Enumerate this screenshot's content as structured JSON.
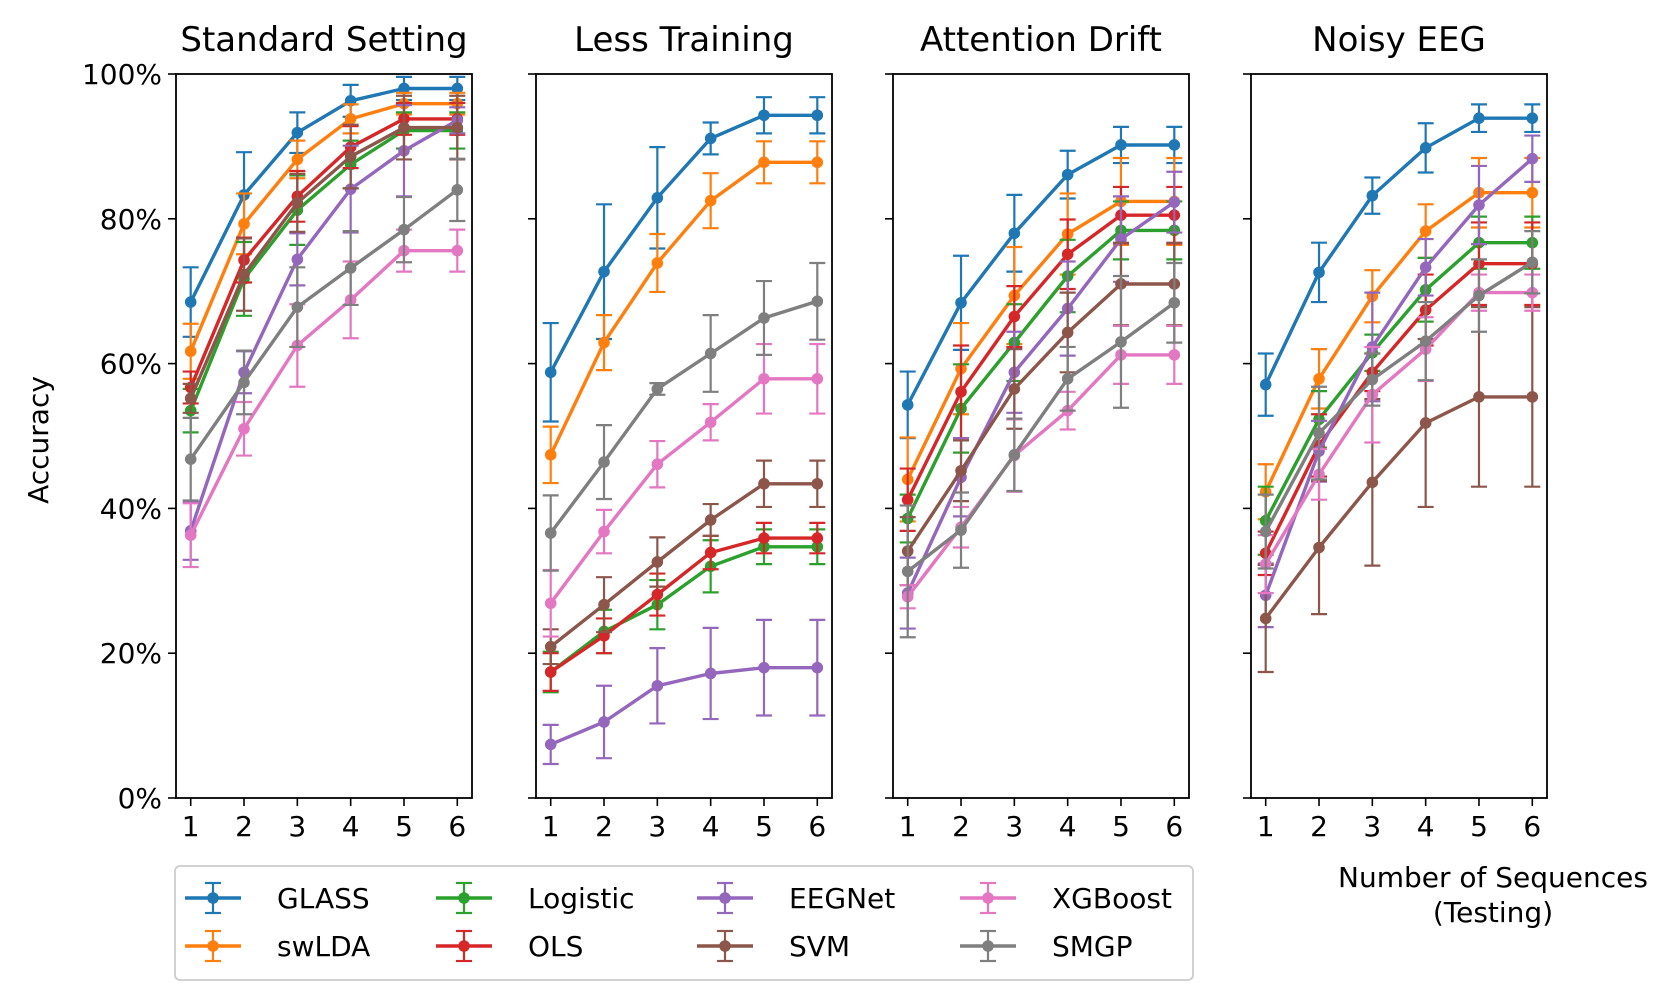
{
  "chart_data": {
    "type": "line",
    "shared_ylabel": "Accuracy",
    "ylim": [
      0,
      100
    ],
    "y_ticks": [
      "0%",
      "20%",
      "40%",
      "60%",
      "80%",
      "100%"
    ],
    "x": [
      1,
      2,
      3,
      4,
      5,
      6
    ],
    "xlabel_line1": "Number of Sequences",
    "xlabel_line2": "(Testing)",
    "series_meta": [
      {
        "name": "GLASS",
        "color": "#1f77b4"
      },
      {
        "name": "swLDA",
        "color": "#ff7f0e"
      },
      {
        "name": "Logistic",
        "color": "#2ca02c"
      },
      {
        "name": "OLS",
        "color": "#d62728"
      },
      {
        "name": "EEGNet",
        "color": "#9467bd"
      },
      {
        "name": "SVM",
        "color": "#8c564b"
      },
      {
        "name": "XGBoost",
        "color": "#e377c2"
      },
      {
        "name": "SMGP",
        "color": "#7f7f7f"
      }
    ],
    "panels": [
      {
        "title": "Standard Setting",
        "series": [
          {
            "name": "GLASS",
            "values": [
              68.5,
              83.3,
              91.9,
              96.3,
              98.0,
              98.0
            ],
            "err": [
              4.8,
              5.9,
              2.8,
              2.2,
              1.6,
              1.6
            ]
          },
          {
            "name": "swLDA",
            "values": [
              61.7,
              79.3,
              88.2,
              93.8,
              95.9,
              95.9
            ],
            "err": [
              3.8,
              4.2,
              2.6,
              2.0,
              1.5,
              1.5
            ]
          },
          {
            "name": "Logistic",
            "values": [
              53.5,
              71.7,
              81.2,
              87.5,
              92.2,
              92.2
            ],
            "err": [
              3.0,
              5.1,
              4.8,
              3.3,
              2.5,
              2.5
            ]
          },
          {
            "name": "OLS",
            "values": [
              56.7,
              74.3,
              83.1,
              89.9,
              93.8,
              93.8
            ],
            "err": [
              2.2,
              3.1,
              3.5,
              2.9,
              2.2,
              2.2
            ]
          },
          {
            "name": "EEGNet",
            "values": [
              36.9,
              58.8,
              74.4,
              84.1,
              89.4,
              93.6
            ],
            "err": [
              4.0,
              2.9,
              3.6,
              6.0,
              6.3,
              1.8
            ]
          },
          {
            "name": "SVM",
            "values": [
              55.2,
              72.3,
              82.2,
              88.6,
              92.6,
              92.6
            ],
            "err": [
              2.0,
              5.0,
              4.0,
              4.4,
              4.4,
              4.4
            ]
          },
          {
            "name": "XGBoost",
            "values": [
              36.3,
              51.0,
              62.5,
              68.8,
              75.6,
              75.6
            ],
            "err": [
              4.4,
              3.7,
              5.7,
              5.3,
              2.9,
              2.9
            ]
          },
          {
            "name": "SMGP",
            "values": [
              46.8,
              57.4,
              67.8,
              73.2,
              78.5,
              84.0
            ],
            "err": [
              5.7,
              4.4,
              5.5,
              5.1,
              4.5,
              4.3
            ]
          }
        ]
      },
      {
        "title": "Less Training",
        "series": [
          {
            "name": "GLASS",
            "values": [
              58.8,
              72.7,
              82.9,
              91.1,
              94.3,
              94.3
            ],
            "err": [
              6.8,
              9.3,
              7.0,
              2.2,
              2.5,
              2.5
            ]
          },
          {
            "name": "swLDA",
            "values": [
              47.4,
              62.9,
              73.9,
              82.5,
              87.8,
              87.8
            ],
            "err": [
              3.9,
              3.8,
              4.0,
              3.8,
              2.9,
              2.9
            ]
          },
          {
            "name": "Logistic",
            "values": [
              17.4,
              23.0,
              26.7,
              32.0,
              34.7,
              34.7
            ],
            "err": [
              2.8,
              3.0,
              3.4,
              3.6,
              2.4,
              2.4
            ]
          },
          {
            "name": "OLS",
            "values": [
              17.4,
              22.4,
              28.1,
              33.9,
              35.9,
              35.9
            ],
            "err": [
              2.6,
              2.4,
              2.9,
              2.3,
              2.1,
              2.1
            ]
          },
          {
            "name": "EEGNet",
            "values": [
              7.4,
              10.5,
              15.5,
              17.2,
              18.0,
              18.0
            ],
            "err": [
              2.7,
              5.0,
              5.2,
              6.3,
              6.6,
              6.6
            ]
          },
          {
            "name": "SVM",
            "values": [
              20.9,
              26.7,
              32.6,
              38.4,
              43.4,
              43.4
            ],
            "err": [
              2.4,
              3.8,
              3.4,
              2.2,
              3.2,
              3.2
            ]
          },
          {
            "name": "XGBoost",
            "values": [
              26.9,
              36.8,
              46.1,
              51.9,
              57.9,
              57.9
            ],
            "err": [
              4.6,
              3.0,
              3.2,
              2.5,
              4.8,
              4.8
            ]
          },
          {
            "name": "SMGP",
            "values": [
              36.6,
              46.4,
              56.5,
              61.4,
              66.3,
              68.6
            ],
            "err": [
              5.2,
              5.1,
              0.8,
              5.3,
              5.1,
              5.3
            ]
          }
        ]
      },
      {
        "title": "Attention Drift",
        "series": [
          {
            "name": "GLASS",
            "values": [
              54.3,
              68.4,
              78.0,
              86.1,
              90.2,
              90.2
            ],
            "err": [
              4.6,
              6.5,
              5.3,
              3.3,
              2.5,
              2.5
            ]
          },
          {
            "name": "swLDA",
            "values": [
              44.0,
              59.3,
              69.4,
              77.9,
              82.4,
              82.4
            ],
            "err": [
              5.8,
              6.3,
              6.7,
              5.6,
              6.0,
              6.0
            ]
          },
          {
            "name": "Logistic",
            "values": [
              38.6,
              53.8,
              62.9,
              72.1,
              78.4,
              78.4
            ],
            "err": [
              3.3,
              6.1,
              5.3,
              5.0,
              4.0,
              4.0
            ]
          },
          {
            "name": "OLS",
            "values": [
              41.2,
              56.1,
              66.5,
              75.1,
              80.5,
              80.5
            ],
            "err": [
              4.3,
              6.4,
              4.2,
              4.8,
              3.9,
              3.9
            ]
          },
          {
            "name": "EEGNet",
            "values": [
              28.3,
              44.3,
              58.8,
              67.6,
              77.2,
              82.3
            ],
            "err": [
              4.9,
              5.4,
              5.6,
              6.5,
              5.9,
              4.2
            ]
          },
          {
            "name": "SVM",
            "values": [
              34.1,
              45.2,
              56.5,
              64.3,
              71.0,
              71.0
            ],
            "err": [
              4.7,
              4.2,
              5.5,
              5.5,
              5.7,
              5.7
            ]
          },
          {
            "name": "XGBoost",
            "values": [
              27.8,
              37.4,
              47.3,
              53.5,
              61.2,
              61.2
            ],
            "err": [
              1.6,
              2.8,
              5.0,
              2.6,
              4.0,
              4.0
            ]
          },
          {
            "name": "SMGP",
            "values": [
              31.3,
              37.0,
              47.4,
              57.9,
              63.0,
              68.4
            ],
            "err": [
              9.1,
              5.2,
              5.0,
              4.4,
              9.1,
              5.5
            ]
          }
        ]
      },
      {
        "title": "Noisy EEG",
        "series": [
          {
            "name": "GLASS",
            "values": [
              57.1,
              72.6,
              83.2,
              89.8,
              93.9,
              93.9
            ],
            "err": [
              4.3,
              4.1,
              2.5,
              3.4,
              1.9,
              1.9
            ]
          },
          {
            "name": "swLDA",
            "values": [
              42.3,
              57.9,
              69.3,
              78.3,
              83.6,
              83.6
            ],
            "err": [
              3.8,
              4.1,
              3.6,
              3.7,
              4.8,
              4.8
            ]
          },
          {
            "name": "Logistic",
            "values": [
              38.3,
              52.3,
              61.5,
              70.2,
              76.7,
              76.7
            ],
            "err": [
              4.7,
              3.9,
              2.5,
              4.4,
              3.6,
              3.6
            ]
          },
          {
            "name": "OLS",
            "values": [
              33.8,
              48.7,
              58.8,
              67.4,
              73.8,
              73.8
            ],
            "err": [
              3.0,
              4.3,
              2.6,
              4.9,
              5.7,
              5.7
            ]
          },
          {
            "name": "EEGNet",
            "values": [
              28.0,
              47.9,
              62.3,
              73.3,
              81.9,
              88.3
            ],
            "err": [
              4.4,
              4.2,
              7.5,
              3.9,
              5.4,
              3.2
            ]
          },
          {
            "name": "SVM",
            "values": [
              24.8,
              34.6,
              43.6,
              51.8,
              55.4,
              55.4
            ],
            "err": [
              7.4,
              9.2,
              11.5,
              11.6,
              12.4,
              12.4
            ]
          },
          {
            "name": "XGBoost",
            "values": [
              32.3,
              44.7,
              55.7,
              62.0,
              69.8,
              69.8
            ],
            "err": [
              4.0,
              3.5,
              6.6,
              4.4,
              2.5,
              2.5
            ]
          },
          {
            "name": "SMGP",
            "values": [
              36.8,
              50.4,
              57.8,
              63.1,
              69.4,
              74.0
            ],
            "err": [
              5.1,
              6.4,
              3.6,
              5.4,
              5.0,
              4.3
            ]
          }
        ]
      }
    ]
  }
}
